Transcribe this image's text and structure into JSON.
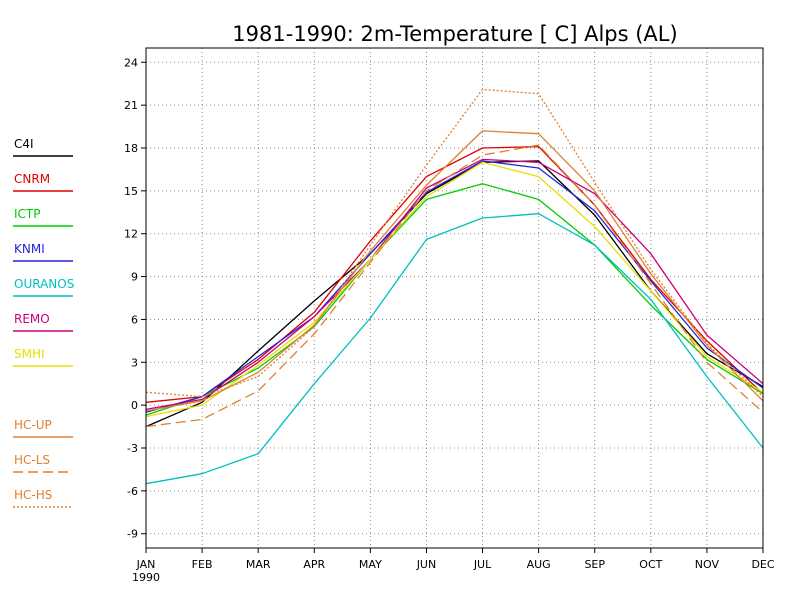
{
  "chart_data": {
    "type": "line",
    "title": "1981-1990: 2m-Temperature [  C] Alps (AL)",
    "xlabel": "",
    "ylabel": "",
    "categories": [
      "JAN",
      "FEB",
      "MAR",
      "APR",
      "MAY",
      "JUN",
      "JUL",
      "AUG",
      "SEP",
      "OCT",
      "NOV",
      "DEC"
    ],
    "x_sublabel": "1990",
    "yticks": [
      "24",
      "21",
      "18",
      "15",
      "12",
      "9",
      "6",
      "3",
      "0",
      "-3",
      "-6",
      "-9"
    ],
    "ylim": [
      -10,
      25
    ],
    "grid": true,
    "legend_position": "left",
    "series": [
      {
        "name": "C4I",
        "color": "#000000",
        "dash": "solid",
        "values": [
          -1.5,
          0.2,
          3.8,
          7.3,
          10.6,
          14.8,
          17.0,
          17.1,
          13.3,
          8.0,
          3.6,
          1.3
        ]
      },
      {
        "name": "CNRM",
        "color": "#dd0000",
        "dash": "solid",
        "values": [
          0.2,
          0.6,
          3.2,
          6.5,
          11.5,
          16.0,
          18.0,
          18.1,
          14.0,
          8.8,
          4.5,
          0.8
        ]
      },
      {
        "name": "ICTP",
        "color": "#00cc00",
        "dash": "solid",
        "values": [
          -0.7,
          0.6,
          2.6,
          5.5,
          10.2,
          14.4,
          15.5,
          14.4,
          11.2,
          7.0,
          3.2,
          0.8
        ]
      },
      {
        "name": "KNMI",
        "color": "#2222dd",
        "dash": "solid",
        "values": [
          -0.5,
          0.6,
          3.4,
          6.2,
          10.6,
          14.9,
          17.1,
          16.6,
          13.6,
          8.7,
          4.0,
          1.2
        ]
      },
      {
        "name": "OURANOS",
        "color": "#00bfbf",
        "dash": "solid",
        "values": [
          -5.5,
          -4.8,
          -3.4,
          1.5,
          6.1,
          11.6,
          13.1,
          13.4,
          11.2,
          7.4,
          2.0,
          -3.0
        ]
      },
      {
        "name": "REMO",
        "color": "#cc0077",
        "dash": "solid",
        "values": [
          -0.3,
          0.4,
          3.0,
          6.2,
          10.2,
          15.2,
          17.2,
          17.0,
          14.8,
          10.6,
          4.9,
          1.5
        ]
      },
      {
        "name": "SMHI",
        "color": "#e8e000",
        "dash": "solid",
        "values": [
          -0.8,
          0.0,
          2.8,
          5.8,
          10.2,
          14.6,
          17.0,
          16.0,
          12.5,
          8.0,
          3.4,
          0.9
        ]
      },
      {
        "name": "HC-UP",
        "color": "#e08030",
        "dash": "solid",
        "values": [
          -0.4,
          0.3,
          2.3,
          5.6,
          10.8,
          15.4,
          19.2,
          19.0,
          15.0,
          9.2,
          4.2,
          0.3
        ]
      },
      {
        "name": "HC-LS",
        "color": "#e08030",
        "dash": "long-dash",
        "values": [
          -1.5,
          -1.0,
          1.0,
          5.0,
          10.0,
          15.0,
          17.5,
          18.2,
          14.0,
          8.5,
          3.0,
          -0.5
        ]
      },
      {
        "name": "HC-HS",
        "color": "#e08030",
        "dash": "dotted",
        "values": [
          0.9,
          0.6,
          2.0,
          5.5,
          11.2,
          16.8,
          22.1,
          21.8,
          15.6,
          9.5,
          4.3,
          0.6
        ]
      }
    ]
  }
}
